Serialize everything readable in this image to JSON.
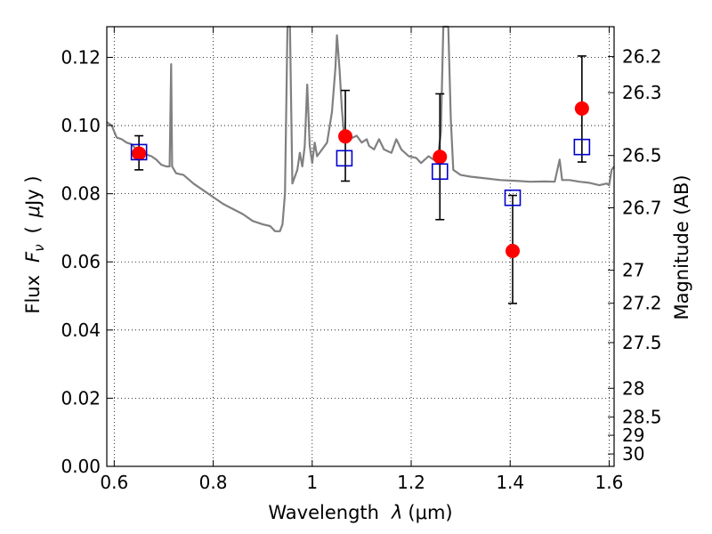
{
  "chart_data": {
    "type": "scatter",
    "xlabel_pre": "Wavelength",
    "xlabel_sym": "λ",
    "xlabel_unit": "(μm)",
    "ylabel_pre": "Flux",
    "ylabel_sym": "F",
    "ylabel_sub": "ν",
    "ylabel_unit_open": "(",
    "ylabel_unit_mu": "μ",
    "ylabel_unit_rest": "Jy )",
    "y2label": "Magnitude (AB)",
    "xlim": [
      0.585,
      1.61
    ],
    "ylim": [
      0.0,
      0.129
    ],
    "grid": true,
    "x_ticks": [
      {
        "v": 0.6,
        "label": "0.6"
      },
      {
        "v": 0.8,
        "label": "0.8"
      },
      {
        "v": 1.0,
        "label": "1"
      },
      {
        "v": 1.2,
        "label": "1.2"
      },
      {
        "v": 1.4,
        "label": "1.4"
      },
      {
        "v": 1.6,
        "label": "1.6"
      }
    ],
    "y_ticks": [
      {
        "v": 0.0,
        "label": "0.00"
      },
      {
        "v": 0.02,
        "label": "0.02"
      },
      {
        "v": 0.04,
        "label": "0.04"
      },
      {
        "v": 0.06,
        "label": "0.06"
      },
      {
        "v": 0.08,
        "label": "0.08"
      },
      {
        "v": 0.1,
        "label": "0.10"
      },
      {
        "v": 0.12,
        "label": "0.12"
      }
    ],
    "mag_ticks": [
      {
        "mag": 26.2,
        "label": "26.2"
      },
      {
        "mag": 26.3,
        "label": "26.3"
      },
      {
        "mag": 26.5,
        "label": "26.5"
      },
      {
        "mag": 26.7,
        "label": "26.7"
      },
      {
        "mag": 27.0,
        "label": "27"
      },
      {
        "mag": 27.2,
        "label": "27.2"
      },
      {
        "mag": 27.5,
        "label": "27.5"
      },
      {
        "mag": 28.0,
        "label": "28"
      },
      {
        "mag": 28.5,
        "label": "28.5"
      },
      {
        "mag": 29.0,
        "label": "29"
      },
      {
        "mag": 30.0,
        "label": "30"
      }
    ],
    "series": [
      {
        "kind": "line",
        "color": "#808080",
        "points": [
          [
            0.585,
            0.101
          ],
          [
            0.595,
            0.1
          ],
          [
            0.605,
            0.0965
          ],
          [
            0.615,
            0.096
          ],
          [
            0.625,
            0.095
          ],
          [
            0.635,
            0.0945
          ],
          [
            0.645,
            0.093
          ],
          [
            0.655,
            0.0925
          ],
          [
            0.665,
            0.0915
          ],
          [
            0.675,
            0.091
          ],
          [
            0.685,
            0.09
          ],
          [
            0.695,
            0.0885
          ],
          [
            0.705,
            0.088
          ],
          [
            0.712,
            0.088
          ],
          [
            0.715,
            0.118
          ],
          [
            0.717,
            0.088
          ],
          [
            0.725,
            0.086
          ],
          [
            0.74,
            0.0855
          ],
          [
            0.76,
            0.083
          ],
          [
            0.78,
            0.081
          ],
          [
            0.8,
            0.079
          ],
          [
            0.82,
            0.077
          ],
          [
            0.84,
            0.0755
          ],
          [
            0.86,
            0.074
          ],
          [
            0.88,
            0.072
          ],
          [
            0.9,
            0.071
          ],
          [
            0.915,
            0.0705
          ],
          [
            0.925,
            0.069
          ],
          [
            0.935,
            0.069
          ],
          [
            0.94,
            0.071
          ],
          [
            0.945,
            0.08
          ],
          [
            0.95,
            0.129
          ],
          [
            0.955,
            0.129
          ],
          [
            0.96,
            0.083
          ],
          [
            0.97,
            0.087
          ],
          [
            0.975,
            0.092
          ],
          [
            0.98,
            0.088
          ],
          [
            0.985,
            0.094
          ],
          [
            0.99,
            0.112
          ],
          [
            0.995,
            0.094
          ],
          [
            1.0,
            0.089
          ],
          [
            1.005,
            0.095
          ],
          [
            1.01,
            0.091
          ],
          [
            1.02,
            0.093
          ],
          [
            1.03,
            0.095
          ],
          [
            1.04,
            0.104
          ],
          [
            1.047,
            0.117
          ],
          [
            1.05,
            0.1265
          ],
          [
            1.055,
            0.117
          ],
          [
            1.06,
            0.105
          ],
          [
            1.065,
            0.096
          ],
          [
            1.075,
            0.096
          ],
          [
            1.09,
            0.097
          ],
          [
            1.1,
            0.095
          ],
          [
            1.11,
            0.096
          ],
          [
            1.115,
            0.094
          ],
          [
            1.125,
            0.093
          ],
          [
            1.135,
            0.096
          ],
          [
            1.145,
            0.093
          ],
          [
            1.16,
            0.092
          ],
          [
            1.17,
            0.096
          ],
          [
            1.18,
            0.093
          ],
          [
            1.195,
            0.091
          ],
          [
            1.21,
            0.0905
          ],
          [
            1.22,
            0.089
          ],
          [
            1.235,
            0.091
          ],
          [
            1.245,
            0.09
          ],
          [
            1.255,
            0.092
          ],
          [
            1.26,
            0.098
          ],
          [
            1.265,
            0.129
          ],
          [
            1.275,
            0.129
          ],
          [
            1.28,
            0.102
          ],
          [
            1.285,
            0.087
          ],
          [
            1.3,
            0.0855
          ],
          [
            1.32,
            0.085
          ],
          [
            1.35,
            0.0845
          ],
          [
            1.38,
            0.084
          ],
          [
            1.41,
            0.0838
          ],
          [
            1.44,
            0.0835
          ],
          [
            1.47,
            0.0836
          ],
          [
            1.49,
            0.0835
          ],
          [
            1.5,
            0.09
          ],
          [
            1.505,
            0.084
          ],
          [
            1.52,
            0.084
          ],
          [
            1.54,
            0.0835
          ],
          [
            1.56,
            0.0832
          ],
          [
            1.58,
            0.0825
          ],
          [
            1.595,
            0.083
          ],
          [
            1.6,
            0.0825
          ],
          [
            1.605,
            0.087
          ],
          [
            1.61,
            0.088
          ]
        ]
      },
      {
        "kind": "errorbar",
        "marker": "circle",
        "color": "#ff0000",
        "points": [
          {
            "x": 0.65,
            "y": 0.0918,
            "ylo": 0.087,
            "yhi": 0.097
          },
          {
            "x": 1.067,
            "y": 0.0968,
            "ylo": 0.0837,
            "yhi": 0.1103
          },
          {
            "x": 1.258,
            "y": 0.0908,
            "ylo": 0.0724,
            "yhi": 0.1093
          },
          {
            "x": 1.405,
            "y": 0.0632,
            "ylo": 0.0478,
            "yhi": 0.0795
          },
          {
            "x": 1.545,
            "y": 0.105,
            "ylo": 0.0893,
            "yhi": 0.1204
          }
        ]
      },
      {
        "kind": "scatter",
        "marker": "square",
        "color": "#0000cc",
        "points": [
          {
            "x": 0.65,
            "y": 0.0922
          },
          {
            "x": 1.065,
            "y": 0.0904
          },
          {
            "x": 1.258,
            "y": 0.0865
          },
          {
            "x": 1.405,
            "y": 0.0788
          },
          {
            "x": 1.545,
            "y": 0.0937
          }
        ]
      }
    ]
  }
}
